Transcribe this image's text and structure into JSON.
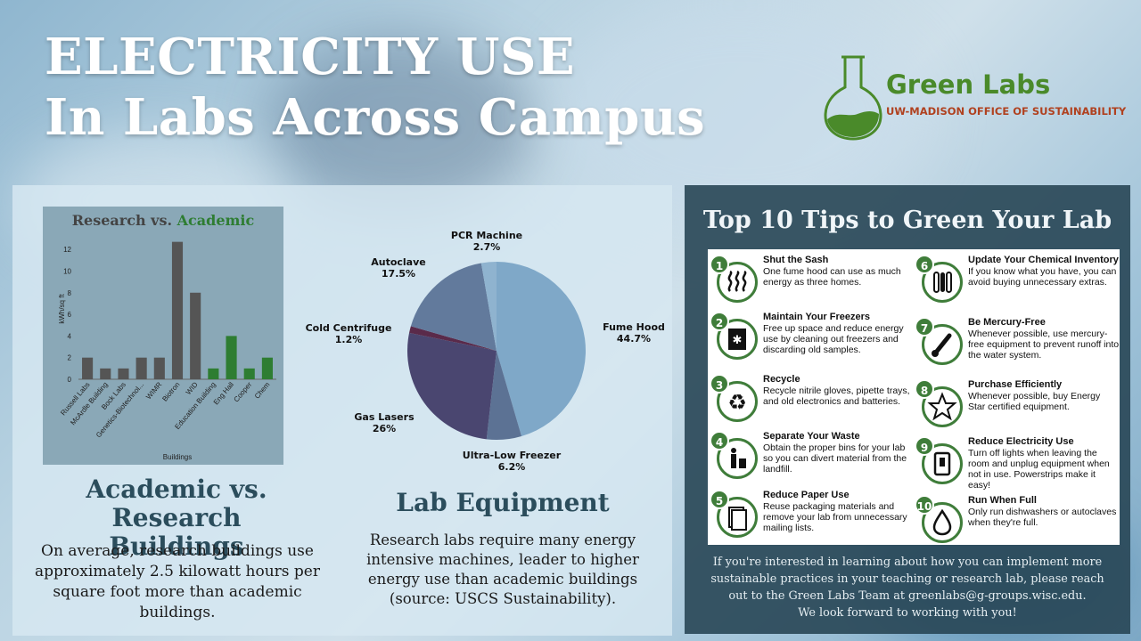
{
  "title": {
    "line1": "ELECTRICITY USE",
    "line2": "In Labs Across Campus"
  },
  "logo": {
    "name": "Green Labs",
    "subtitle": "UW-MADISON OFFICE OF SUSTAINABILITY",
    "icon": "flask-icon",
    "color": "#4a8a2a"
  },
  "academic_section": {
    "heading_line1": "Academic vs. Research",
    "heading_line2": "Buildings",
    "body_lines": [
      "On average, research buildings use",
      "approximately 2.5 kilowatt hours per",
      "square foot more than academic",
      "buildings."
    ]
  },
  "equipment_section": {
    "heading": "Lab Equipment",
    "body_lines": [
      "Research labs require many energy",
      "intensive machines, leader to higher",
      "energy use than academic buildings",
      "(source: USCS Sustainability)."
    ]
  },
  "chart_data": [
    {
      "type": "bar",
      "title": "Research vs.",
      "title_highlight": "Academic",
      "xlabel": "Buildings",
      "ylabel": "kWh/sq ft",
      "ylim": [
        0,
        13
      ],
      "yticks": [
        0,
        2,
        4,
        6,
        8,
        10,
        12
      ],
      "grid": false,
      "categories": [
        "Russell Labs",
        "McArdle Building",
        "Bock Labs",
        "Genetics-Biotechnol...",
        "WIMR",
        "Biotron",
        "WID",
        "Education Building",
        "Eng Hall",
        "Cooper",
        "Chem"
      ],
      "values": [
        2,
        1,
        1,
        2,
        2,
        12.7,
        8,
        1,
        4,
        1,
        2
      ],
      "groups": [
        "research",
        "research",
        "research",
        "research",
        "research",
        "research",
        "research",
        "academic",
        "academic",
        "academic",
        "academic"
      ],
      "colors": {
        "research": "#555555",
        "academic": "#2e7d32"
      }
    },
    {
      "type": "pie",
      "slices": [
        {
          "label": "Fume Hood",
          "value": 44.7,
          "display": "44.7%",
          "color": "#7fa8c8"
        },
        {
          "label": "Ultra-Low Freezer",
          "value": 6.2,
          "display": "6.2%",
          "color": "#5c7294"
        },
        {
          "label": "Gas Lasers",
          "value": 26,
          "display": "26%",
          "color": "#4a4670"
        },
        {
          "label": "Cold Centrifuge",
          "value": 1.2,
          "display": "1.2%",
          "color": "#5a2a4a"
        },
        {
          "label": "Autoclave",
          "value": 17.5,
          "display": "17.5%",
          "color": "#627a9c"
        },
        {
          "label": "PCR Machine",
          "value": 2.7,
          "display": "2.7%",
          "color": "#8fb3cf"
        }
      ]
    }
  ],
  "tips": {
    "title": "Top 10 Tips to Green Your Lab",
    "items": [
      {
        "num": "1",
        "title": "Shut the Sash",
        "body": "One fume hood can use as much energy as three homes.",
        "icon": "heat-waves-icon"
      },
      {
        "num": "2",
        "title": "Maintain Your Freezers",
        "body": "Free up space and reduce energy use by cleaning out freezers and discarding old samples.",
        "icon": "freezer-icon"
      },
      {
        "num": "3",
        "title": "Recycle",
        "body": "Recycle nitrile gloves, pipette trays, and old electronics and batteries.",
        "icon": "recycle-icon"
      },
      {
        "num": "4",
        "title": "Separate Your Waste",
        "body": "Obtain the proper bins for your lab so you can divert material from the landfill.",
        "icon": "waste-bin-icon"
      },
      {
        "num": "5",
        "title": "Reduce Paper Use",
        "body": "Reuse packaging materials and remove your lab from unnecessary mailing lists.",
        "icon": "paper-icon"
      },
      {
        "num": "6",
        "title": "Update Your Chemical Inventory",
        "body": "If you know what you have, you can avoid buying unnecessary extras.",
        "icon": "test-tubes-icon"
      },
      {
        "num": "7",
        "title": "Be Mercury-Free",
        "body": "Whenever possible, use mercury-free equipment to prevent runoff into the water system.",
        "icon": "thermometer-icon"
      },
      {
        "num": "8",
        "title": "Purchase Efficiently",
        "body": "Whenever possible, buy Energy Star certified equipment.",
        "icon": "star-icon"
      },
      {
        "num": "9",
        "title": "Reduce Electricity Use",
        "body": "Turn off lights when leaving the room and unplug equipment when not in use. Powerstrips make it easy!",
        "icon": "light-switch-icon"
      },
      {
        "num": "10",
        "title": "Run When Full",
        "body": "Only run dishwashers or autoclaves when they're full.",
        "icon": "water-drop-icon"
      }
    ]
  },
  "footer": {
    "lines": [
      "If you're interested in learning about how you can implement more",
      "sustainable practices in your teaching or research lab, please reach",
      "out to the Green Labs Team at greenlabs@g-groups.wisc.edu.",
      "We look forward to working with you!"
    ]
  }
}
